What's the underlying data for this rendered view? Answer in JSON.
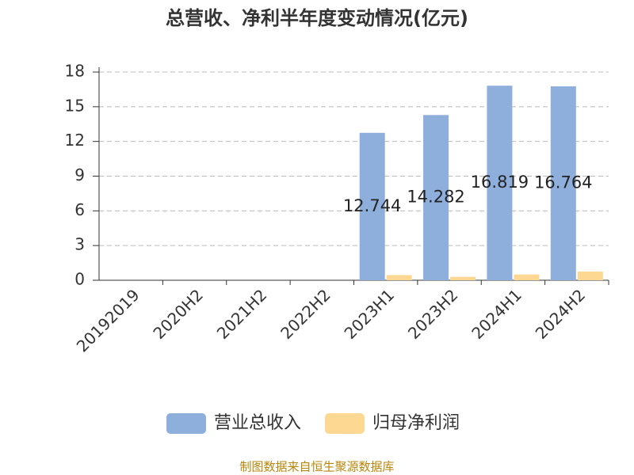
{
  "chart_data": {
    "type": "bar",
    "title": "总营收、净利半年度变动情况(亿元)",
    "categories": [
      "20192019",
      "2020H2",
      "2021H2",
      "2022H2",
      "2023H1",
      "2023H2",
      "2024H1",
      "2024H2"
    ],
    "series": [
      {
        "name": "营业总收入",
        "color": "#8eaedb",
        "values": [
          null,
          null,
          null,
          null,
          12.744,
          14.282,
          16.819,
          16.764
        ]
      },
      {
        "name": "归母净利润",
        "color": "#fdd893",
        "values": [
          null,
          null,
          null,
          null,
          0.45,
          0.3,
          0.5,
          0.75
        ]
      }
    ],
    "ylim": [
      0,
      18
    ],
    "yticks": [
      0,
      3,
      6,
      9,
      12,
      15,
      18
    ],
    "grid": true,
    "legend": "bottom",
    "footer": "制图数据来自恒生聚源数据库"
  }
}
